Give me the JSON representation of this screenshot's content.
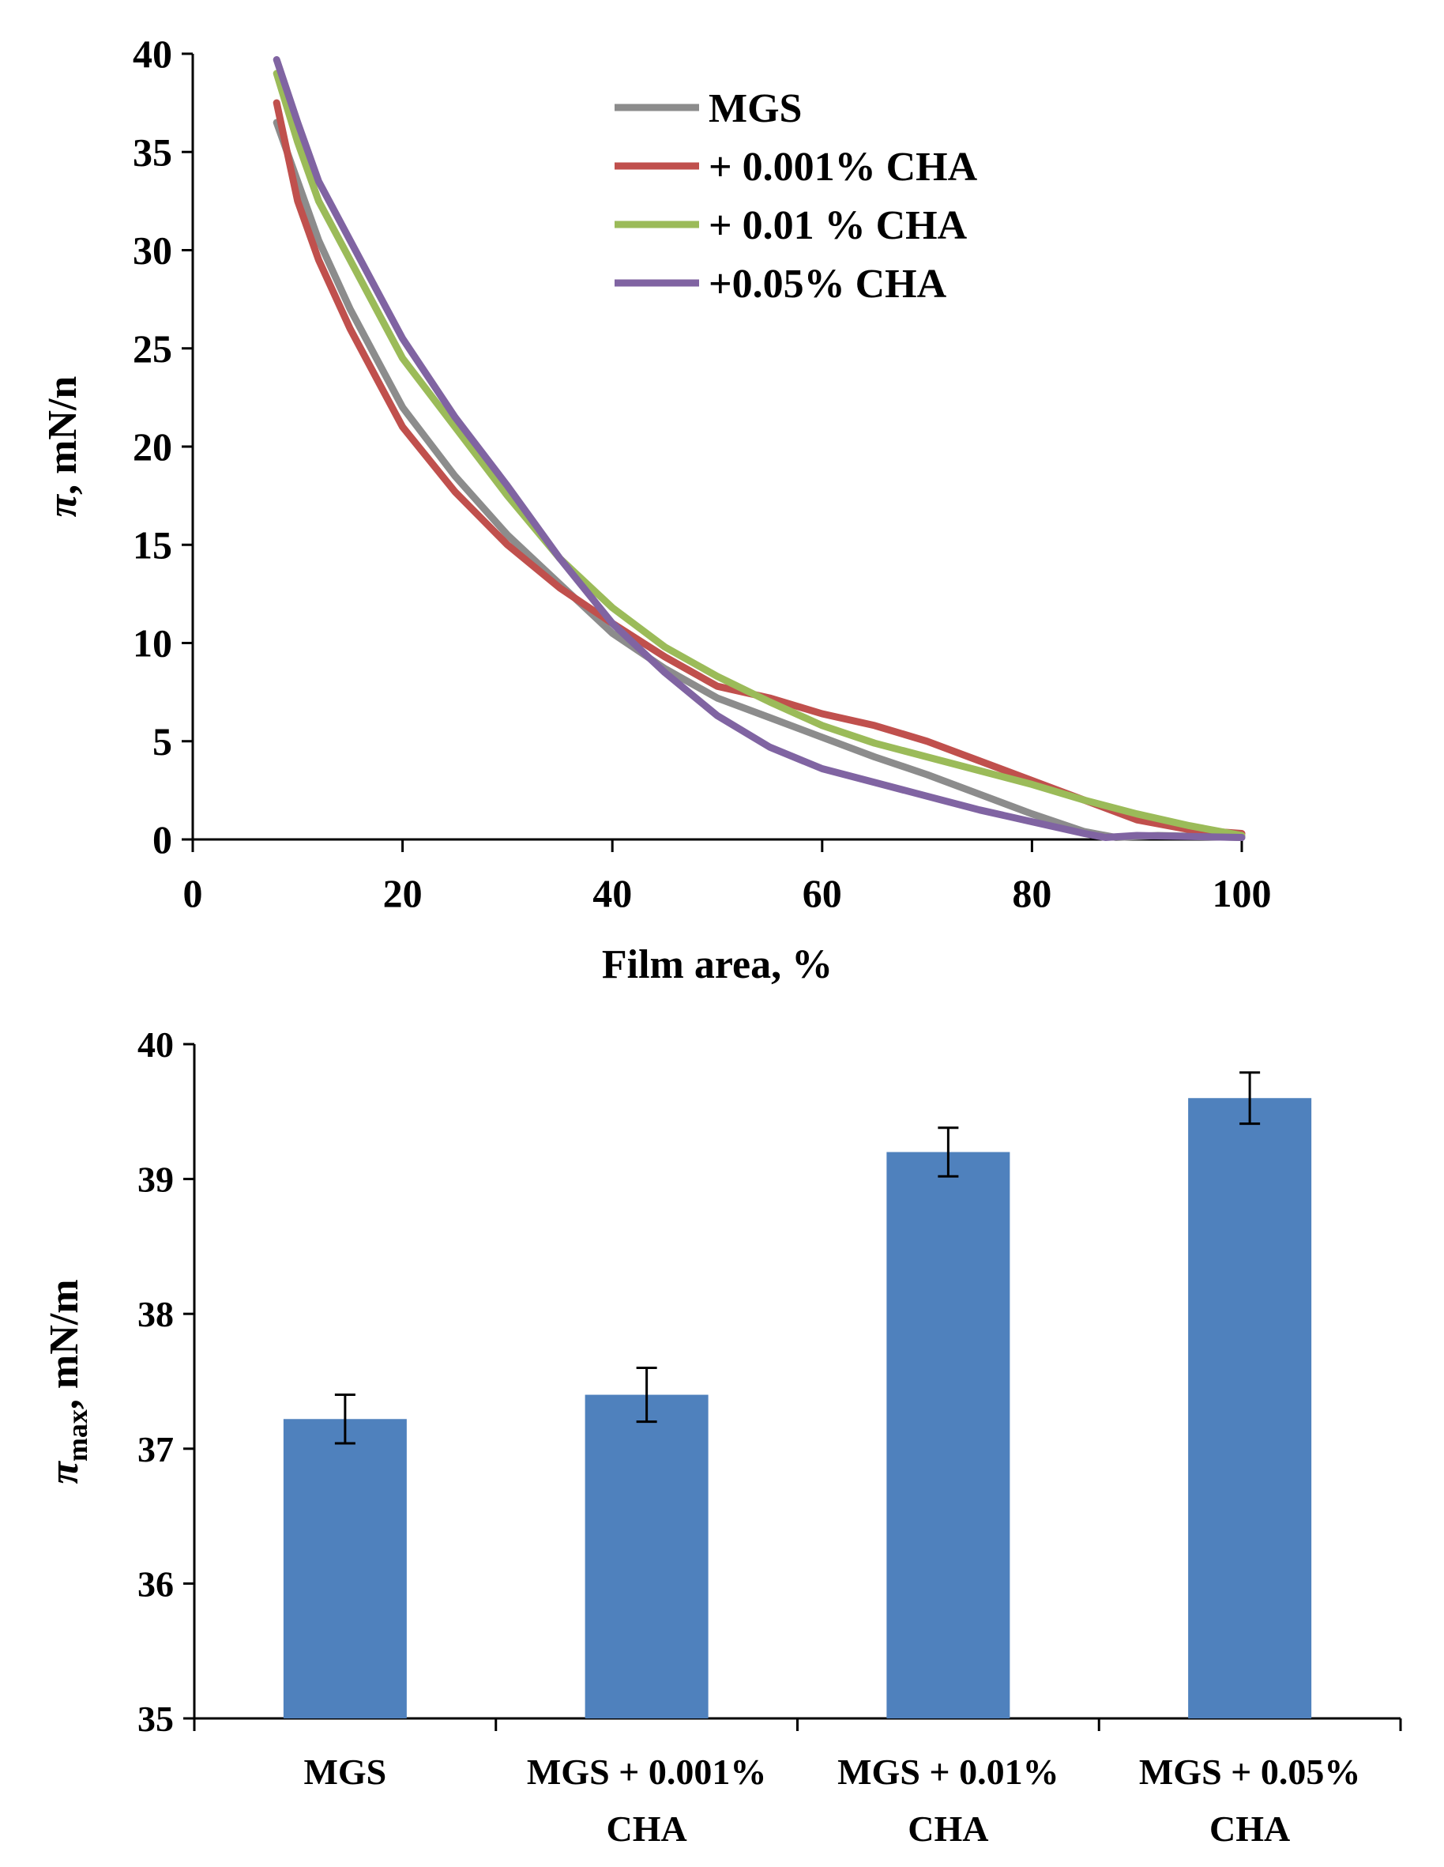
{
  "chart_data": [
    {
      "type": "line",
      "title": "",
      "xlabel": "Film area, %",
      "ylabel_symbol": "π",
      "ylabel": ", mN/n",
      "xlim": [
        0,
        100
      ],
      "ylim": [
        0,
        40
      ],
      "x_ticks": [
        "0",
        "20",
        "40",
        "60",
        "80",
        "100"
      ],
      "y_ticks": [
        "0",
        "5",
        "10",
        "15",
        "20",
        "25",
        "30",
        "35",
        "40"
      ],
      "legend_position": "top-right",
      "series": [
        {
          "name": "MGS",
          "color": "#8c8c8c",
          "points": [
            [
              8,
              36.5
            ],
            [
              10,
              33.5
            ],
            [
              12,
              30.5
            ],
            [
              15,
              27
            ],
            [
              18,
              24
            ],
            [
              20,
              22
            ],
            [
              25,
              18.5
            ],
            [
              30,
              15.5
            ],
            [
              35,
              13
            ],
            [
              40,
              10.5
            ],
            [
              45,
              8.7
            ],
            [
              50,
              7.2
            ],
            [
              55,
              6.2
            ],
            [
              60,
              5.2
            ],
            [
              65,
              4.2
            ],
            [
              70,
              3.3
            ],
            [
              75,
              2.3
            ],
            [
              80,
              1.3
            ],
            [
              85,
              0.4
            ],
            [
              88,
              0.1
            ],
            [
              92,
              0.2
            ],
            [
              100,
              0.1
            ]
          ]
        },
        {
          "name": "+ 0.001% CHA",
          "color": "#c0504d",
          "points": [
            [
              8,
              37.5
            ],
            [
              10,
              32.5
            ],
            [
              12,
              29.5
            ],
            [
              15,
              26
            ],
            [
              18,
              23
            ],
            [
              20,
              21
            ],
            [
              25,
              17.7
            ],
            [
              30,
              15
            ],
            [
              35,
              12.8
            ],
            [
              40,
              11
            ],
            [
              45,
              9.3
            ],
            [
              50,
              7.8
            ],
            [
              55,
              7.2
            ],
            [
              60,
              6.4
            ],
            [
              65,
              5.8
            ],
            [
              70,
              5.0
            ],
            [
              75,
              4.0
            ],
            [
              80,
              3.0
            ],
            [
              85,
              2.0
            ],
            [
              90,
              1.0
            ],
            [
              95,
              0.5
            ],
            [
              100,
              0.3
            ]
          ]
        },
        {
          "name": "+ 0.01 % CHA",
          "color": "#9bbb59",
          "points": [
            [
              8,
              39
            ],
            [
              10,
              35.5
            ],
            [
              12,
              32.5
            ],
            [
              15,
              29.5
            ],
            [
              18,
              26.5
            ],
            [
              20,
              24.5
            ],
            [
              25,
              21
            ],
            [
              30,
              17.5
            ],
            [
              35,
              14.3
            ],
            [
              40,
              11.8
            ],
            [
              45,
              9.8
            ],
            [
              50,
              8.3
            ],
            [
              55,
              7.0
            ],
            [
              60,
              5.8
            ],
            [
              65,
              4.9
            ],
            [
              70,
              4.2
            ],
            [
              75,
              3.5
            ],
            [
              80,
              2.8
            ],
            [
              85,
              2.0
            ],
            [
              90,
              1.3
            ],
            [
              95,
              0.7
            ],
            [
              100,
              0.2
            ]
          ]
        },
        {
          "name": "+0.05% CHA",
          "color": "#8064a2",
          "points": [
            [
              8,
              39.7
            ],
            [
              10,
              36.5
            ],
            [
              12,
              33.5
            ],
            [
              15,
              30.5
            ],
            [
              18,
              27.5
            ],
            [
              20,
              25.5
            ],
            [
              25,
              21.5
            ],
            [
              30,
              18
            ],
            [
              35,
              14.3
            ],
            [
              40,
              11
            ],
            [
              45,
              8.5
            ],
            [
              50,
              6.3
            ],
            [
              55,
              4.7
            ],
            [
              60,
              3.6
            ],
            [
              65,
              2.9
            ],
            [
              70,
              2.2
            ],
            [
              75,
              1.5
            ],
            [
              80,
              0.9
            ],
            [
              85,
              0.3
            ],
            [
              87,
              0.1
            ],
            [
              90,
              0.2
            ],
            [
              100,
              0.1
            ]
          ]
        }
      ]
    },
    {
      "type": "bar",
      "title": "",
      "xlabel": "",
      "ylabel_symbol": "π",
      "ylabel_sub": "max",
      "ylabel": ", mN/m",
      "ylim": [
        35,
        40
      ],
      "y_ticks": [
        "35",
        "36",
        "37",
        "38",
        "39",
        "40"
      ],
      "bar_color": "#4f81bd",
      "categories": [
        [
          "MGS"
        ],
        [
          "MGS + 0.001%",
          "CHA"
        ],
        [
          "MGS + 0.01%",
          "CHA"
        ],
        [
          "MGS + 0.05%",
          "CHA"
        ]
      ],
      "values": [
        37.22,
        37.4,
        39.2,
        39.6
      ],
      "errors": [
        0.18,
        0.2,
        0.18,
        0.19
      ]
    }
  ]
}
